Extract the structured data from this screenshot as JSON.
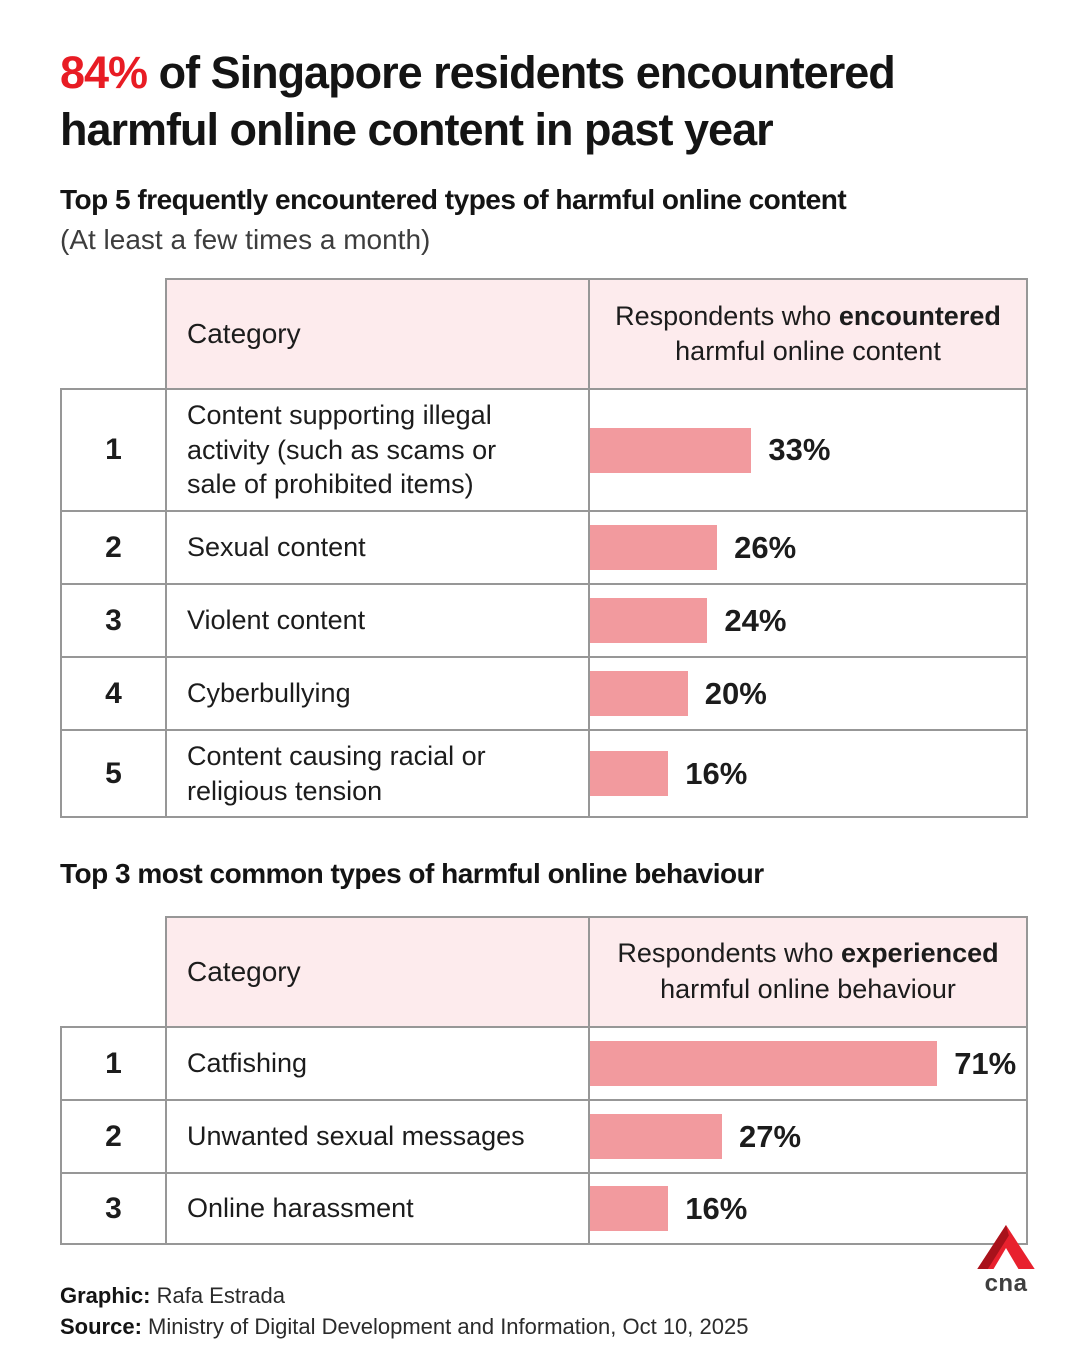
{
  "colors": {
    "accent_red": "#e81c24",
    "bar_pink": "#f29a9e",
    "header_row_pink": "#fdebed",
    "table_border_gray": "#979797",
    "logo_dark_red": "#a8121b",
    "logo_bright_red": "#e8212e"
  },
  "header": {
    "title_highlight": "84%",
    "title_rest": "of Singapore residents encountered harmful online content in past year"
  },
  "chart_data": [
    {
      "type": "bar",
      "orientation": "horizontal",
      "title": "Top 5 frequently encountered types of harmful online content",
      "subtitle": "(At least a few times a month)",
      "column_header_category": "Category",
      "value_header_prefix": "Respondents who",
      "value_header_bold": "encountered",
      "value_header_line2": "harmful online content",
      "ranks": [
        "1",
        "2",
        "3",
        "4",
        "5"
      ],
      "categories": [
        "Content supporting illegal activity (such as scams or sale of prohibited items)",
        "Sexual content",
        "Violent content",
        "Cyberbullying",
        "Content causing racial or religious tension"
      ],
      "values": [
        33,
        26,
        24,
        20,
        16
      ],
      "value_labels": [
        "33%",
        "26%",
        "24%",
        "20%",
        "16%"
      ],
      "xlim": [
        0,
        90
      ],
      "grid": false,
      "legend": "none"
    },
    {
      "type": "bar",
      "orientation": "horizontal",
      "title": "Top 3 most common types of harmful online behaviour",
      "subtitle": "",
      "column_header_category": "Category",
      "value_header_prefix": "Respondents who",
      "value_header_bold": "experienced",
      "value_header_line2": "harmful online behaviour",
      "ranks": [
        "1",
        "2",
        "3"
      ],
      "categories": [
        "Catfishing",
        "Unwanted sexual messages",
        "Online harassment"
      ],
      "values": [
        71,
        27,
        16
      ],
      "value_labels": [
        "71%",
        "27%",
        "16%"
      ],
      "xlim": [
        0,
        90
      ],
      "grid": false,
      "legend": "none"
    }
  ],
  "footer": {
    "credit_label": "Graphic:",
    "credit_value": "Rafa Estrada",
    "source_label": "Source:",
    "source_value": "Ministry of Digital Development and Information, Oct 10, 2025",
    "logo_text": "cna"
  }
}
